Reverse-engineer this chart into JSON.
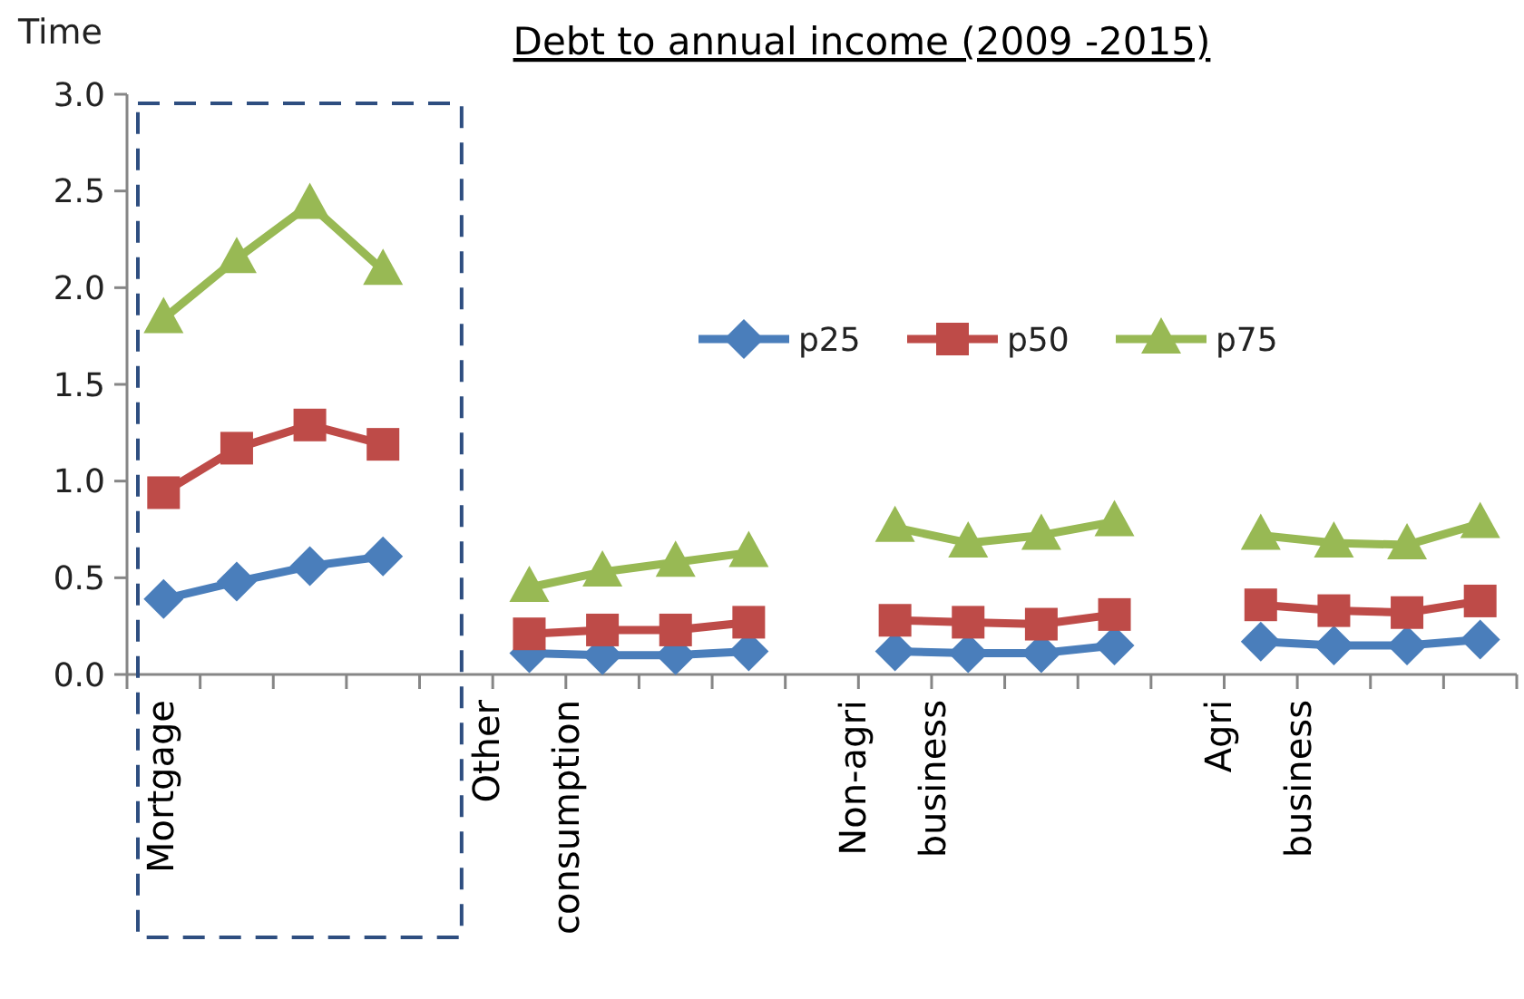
{
  "chart_data": {
    "type": "line",
    "title": "Debt to annual income (2009 -2015)",
    "ylabel": "Time",
    "categories": [
      "Mortgage",
      null,
      null,
      null,
      null,
      "Other consumption",
      null,
      null,
      null,
      null,
      "Non-agri business",
      null,
      null,
      null,
      null,
      "Agri business",
      null,
      null,
      null
    ],
    "series": [
      {
        "name": "p25",
        "color": "#4a7ebb",
        "marker": "diamond",
        "values": [
          0.39,
          0.48,
          0.56,
          0.61,
          null,
          0.11,
          0.1,
          0.1,
          0.12,
          null,
          0.12,
          0.11,
          0.11,
          0.15,
          null,
          0.17,
          0.15,
          0.15,
          0.18
        ]
      },
      {
        "name": "p50",
        "color": "#be4b48",
        "marker": "square",
        "values": [
          0.94,
          1.17,
          1.29,
          1.19,
          null,
          0.21,
          0.23,
          0.23,
          0.27,
          null,
          0.28,
          0.27,
          0.26,
          0.31,
          null,
          0.36,
          0.33,
          0.32,
          0.38
        ]
      },
      {
        "name": "p75",
        "color": "#98b954",
        "marker": "triangle",
        "values": [
          1.84,
          2.15,
          2.43,
          2.09,
          null,
          0.45,
          0.53,
          0.58,
          0.63,
          null,
          0.76,
          0.68,
          0.72,
          0.79,
          null,
          0.72,
          0.68,
          0.67,
          0.78
        ]
      }
    ],
    "ylim": [
      0,
      3
    ],
    "yticks": [
      {
        "value": 0,
        "label": "0.0"
      },
      {
        "value": 0.5,
        "label": "0.5"
      },
      {
        "value": 1,
        "label": "1.0"
      },
      {
        "value": 1.5,
        "label": "1.5"
      },
      {
        "value": 2,
        "label": "2.0"
      },
      {
        "value": 2.5,
        "label": "2.5"
      },
      {
        "value": 3,
        "label": "3.0"
      }
    ],
    "grid": false,
    "legend": "top right"
  }
}
